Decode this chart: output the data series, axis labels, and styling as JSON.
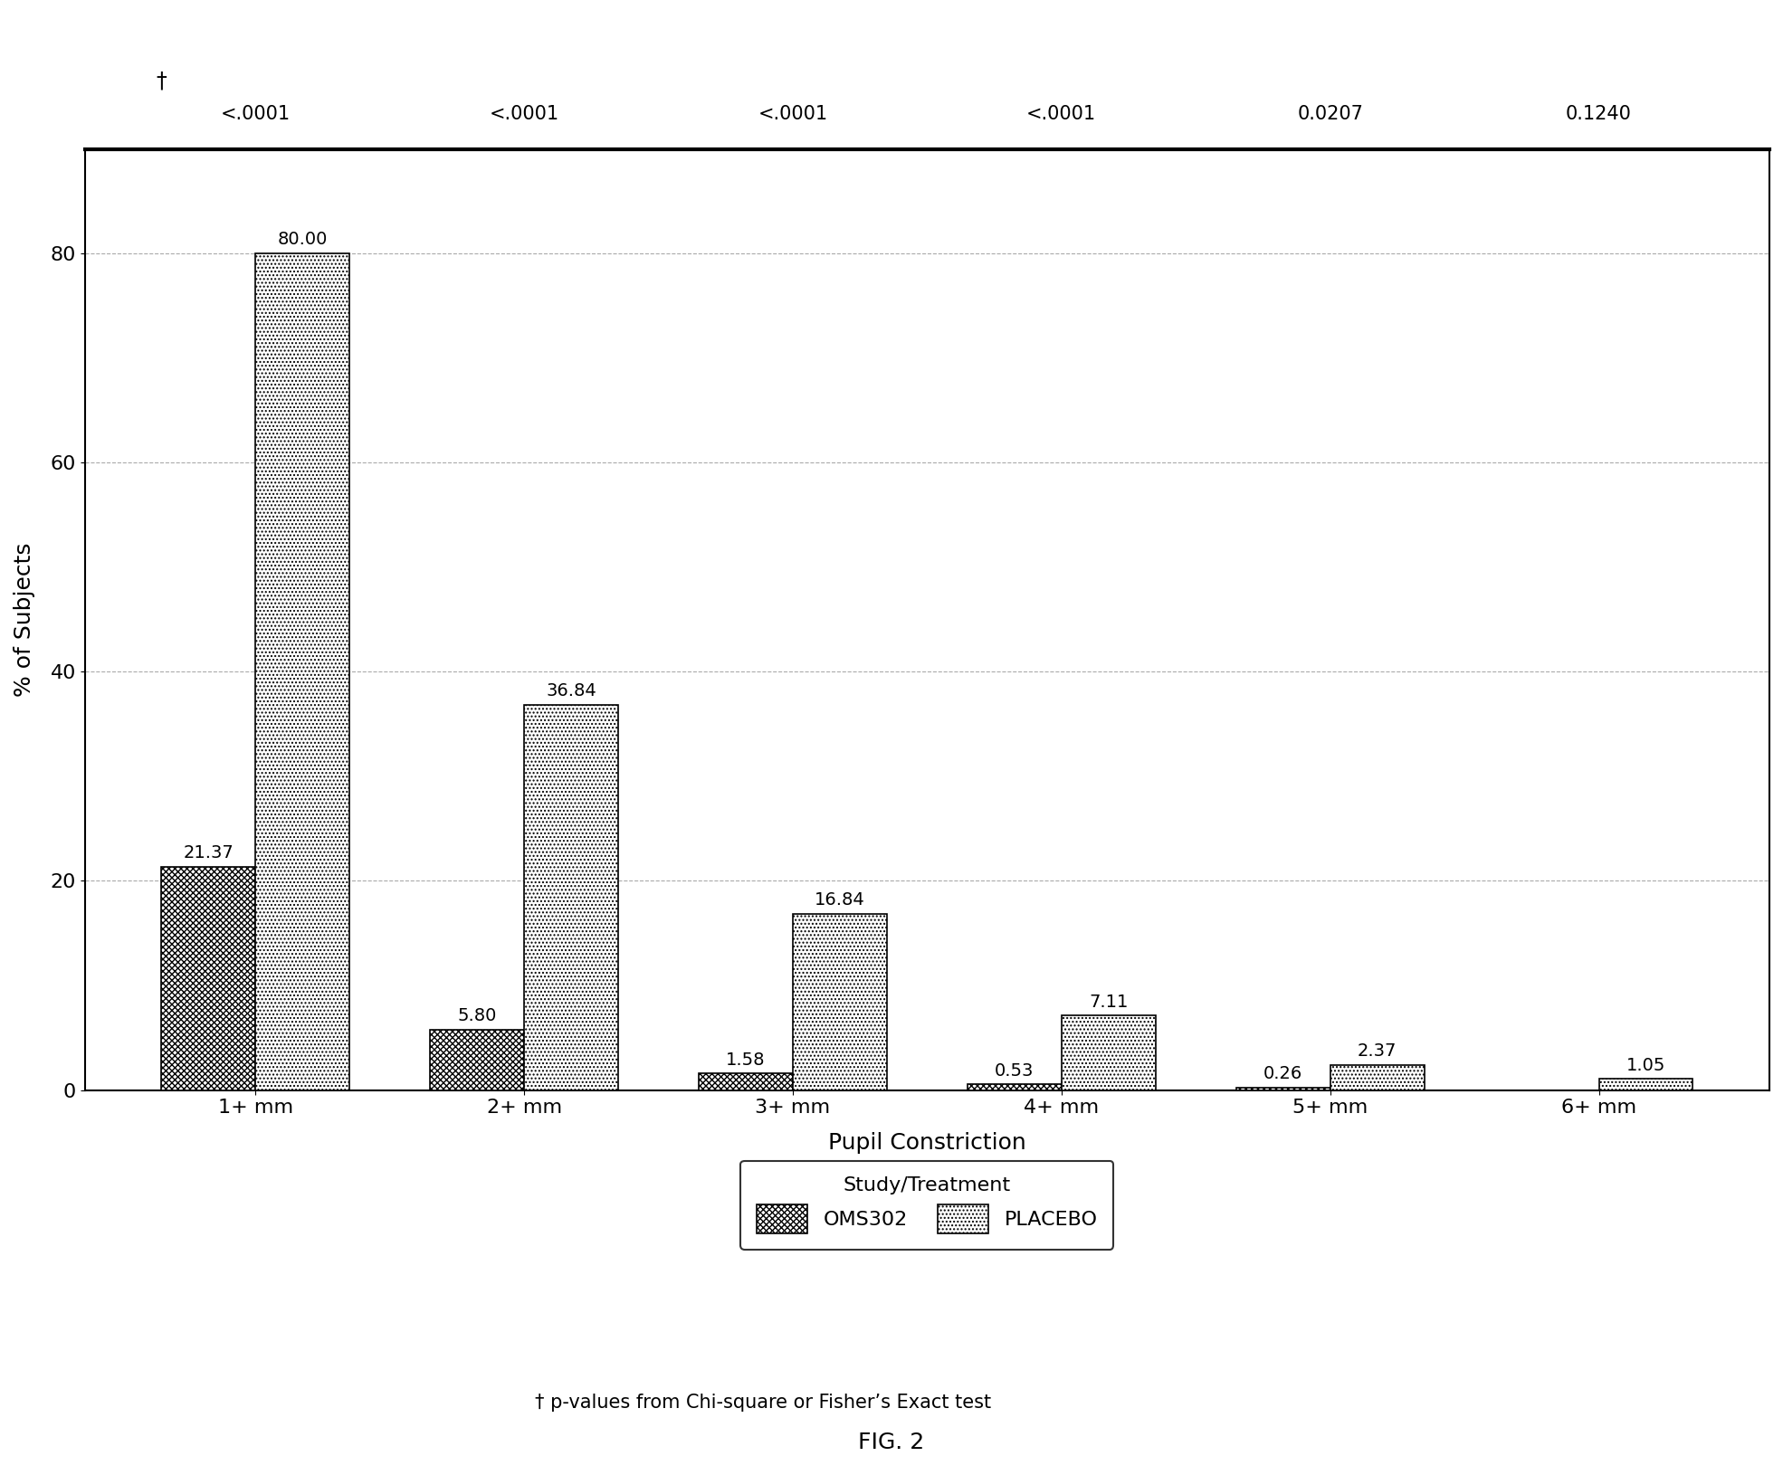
{
  "categories": [
    "1+ mm",
    "2+ mm",
    "3+ mm",
    "4+ mm",
    "5+ mm",
    "6+ mm"
  ],
  "oms302": [
    21.37,
    5.8,
    1.58,
    0.53,
    0.26,
    0.0
  ],
  "placebo": [
    80.0,
    36.84,
    16.84,
    7.11,
    2.37,
    1.05
  ],
  "p_values": [
    "<.0001",
    "<.0001",
    "<.0001",
    "<.0001",
    "0.0207",
    "0.1240"
  ],
  "ylabel": "% of Subjects",
  "xlabel": "Pupil Constriction",
  "ylim": [
    0,
    90
  ],
  "yticks": [
    0,
    20,
    40,
    60,
    80
  ],
  "legend_label": "Study/Treatment",
  "legend_oms302": "OMS302",
  "legend_placebo": "PLACEBO",
  "footnote": "† p-values from Chi-square or Fisher’s Exact test",
  "fig_label": "FIG. 2",
  "bar_width": 0.35,
  "background_color": "#ffffff",
  "plot_bg_color": "#ffffff",
  "grid_color": "#aaaaaa",
  "border_color": "#000000",
  "text_color": "#000000",
  "title_fontsize": 14,
  "label_fontsize": 18,
  "tick_fontsize": 16,
  "bar_value_fontsize": 14,
  "pvalue_fontsize": 15,
  "legend_fontsize": 16,
  "footnote_fontsize": 15
}
